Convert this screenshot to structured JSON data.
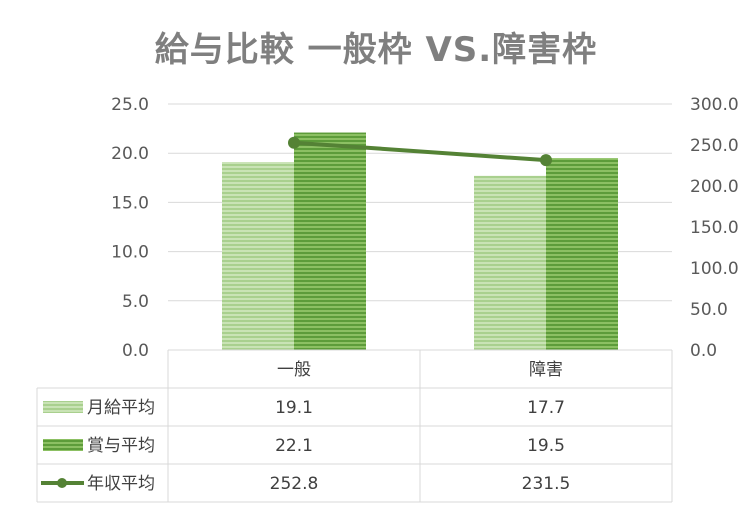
{
  "chart_data": {
    "type": "bar",
    "title": "給与比較 一般枠 VS.障害枠",
    "categories": [
      "一般",
      "障害"
    ],
    "series": [
      {
        "name": "月給平均",
        "kind": "bar",
        "axis": "left",
        "values": [
          19.1,
          17.7
        ],
        "color": "#a9d08e"
      },
      {
        "name": "賞与平均",
        "kind": "bar",
        "axis": "left",
        "values": [
          22.1,
          19.5
        ],
        "color": "#70ad47"
      },
      {
        "name": "年収平均",
        "kind": "line",
        "axis": "right",
        "values": [
          252.8,
          231.5
        ],
        "color": "#548235"
      }
    ],
    "ylim": [
      0,
      25
    ],
    "y2lim": [
      0,
      300
    ],
    "yticks": [
      "0.0",
      "5.0",
      "10.0",
      "15.0",
      "20.0",
      "25.0"
    ],
    "y2ticks": [
      "0.0",
      "50.0",
      "100.0",
      "150.0",
      "200.0",
      "250.0",
      "300.0"
    ],
    "table_values": [
      [
        "19.1",
        "17.7"
      ],
      [
        "22.1",
        "19.5"
      ],
      [
        "252.8",
        "231.5"
      ]
    ],
    "grid": true,
    "legend": "data-table"
  }
}
